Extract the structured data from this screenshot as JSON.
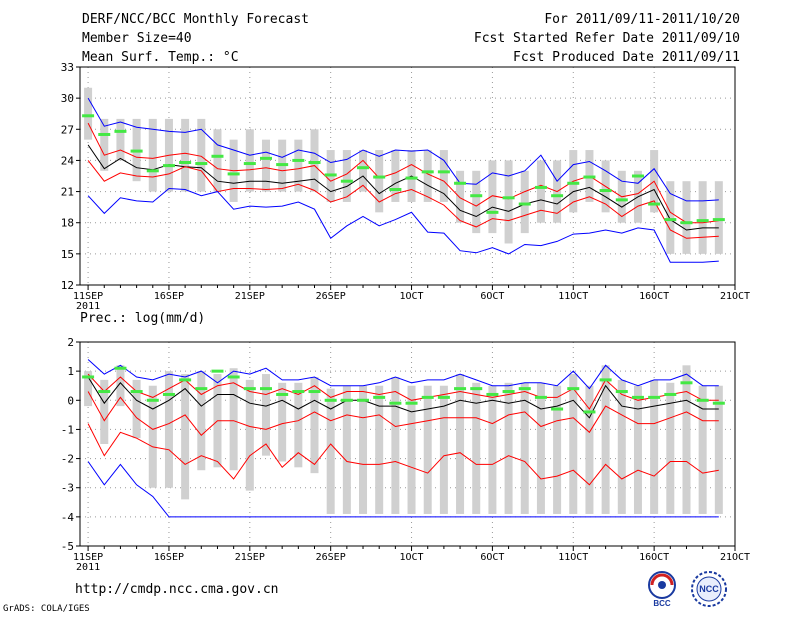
{
  "header": {
    "left": [
      "DERF/NCC/BCC Monthly Forecast",
      "Member Size=40",
      "Mean Surf. Temp.: °C"
    ],
    "right": [
      "For 2011/09/11-2011/10/20",
      "Fcst Started Refer Date 2011/09/10",
      "Fcst Produced Date 2011/09/11"
    ]
  },
  "footer": {
    "url": "http://cmdp.ncc.cma.gov.cn",
    "credit": "GrADS: COLA/IGES",
    "logos": [
      {
        "name": "bcc-logo",
        "label": "BCC"
      },
      {
        "name": "ncc-logo",
        "label": "NCC"
      }
    ]
  },
  "colors": {
    "max": "#0000ff",
    "spread": "#ff0000",
    "mean": "#000000",
    "box": "#d0d0d0",
    "marker": "#44e844",
    "grid": "#999999"
  },
  "chart_data": [
    {
      "type": "line",
      "title": "Mean Surf. Temp.: °C",
      "x": [
        1,
        2,
        3,
        4,
        5,
        6,
        7,
        8,
        9,
        10,
        11,
        12,
        13,
        14,
        15,
        16,
        17,
        18,
        19,
        20,
        21,
        22,
        23,
        24,
        25,
        26,
        27,
        28,
        29,
        30,
        31,
        32,
        33,
        34,
        35,
        36,
        37,
        38,
        39,
        40
      ],
      "x_tick_labels": [
        "11SEP\n2011",
        "16SEP",
        "21SEP",
        "26SEP",
        "1OCT",
        "6OCT",
        "11OCT",
        "16OCT",
        "21OCT"
      ],
      "x_tick_positions": [
        1,
        6,
        11,
        16,
        21,
        26,
        31,
        36,
        41
      ],
      "xlim": [
        0.5,
        41
      ],
      "ylim": [
        12,
        33
      ],
      "y_ticks": [
        12,
        15,
        18,
        21,
        24,
        27,
        30,
        33
      ],
      "series": [
        {
          "name": "max",
          "values": [
            30,
            27.3,
            27.7,
            27.2,
            27,
            26.8,
            26.7,
            27,
            25.5,
            25,
            24.5,
            24.8,
            24.3,
            25,
            24.7,
            23.8,
            24.1,
            25,
            24.4,
            25,
            24.9,
            25,
            24,
            21.8,
            21.7,
            22.8,
            22.5,
            23,
            24.5,
            22,
            23.6,
            23.9,
            23,
            22,
            21.8,
            23.2,
            20.8,
            20.1,
            20.1,
            20.2
          ]
        },
        {
          "name": "upper",
          "values": [
            27.6,
            24.5,
            25,
            24.3,
            24.2,
            24.5,
            24.7,
            24.4,
            23.2,
            23,
            23.1,
            23.3,
            23,
            23.2,
            23.5,
            22,
            22.7,
            24,
            22.3,
            22.8,
            23.6,
            22.7,
            22,
            20.4,
            19.6,
            20.6,
            20.3,
            21,
            21.6,
            21,
            22,
            22.5,
            21.5,
            20.5,
            20.8,
            22,
            19,
            18,
            18,
            18.2
          ]
        },
        {
          "name": "mean",
          "values": [
            25.5,
            23.2,
            24.2,
            23.3,
            23.1,
            23.6,
            23.4,
            23.3,
            22,
            21.8,
            22,
            22,
            21.8,
            22,
            22.2,
            21,
            21.5,
            22.5,
            20.8,
            21.8,
            22.5,
            21.6,
            20.8,
            19.2,
            18.6,
            19.5,
            19.1,
            19.8,
            20.2,
            19.8,
            21,
            21.4,
            20.5,
            19.5,
            20.5,
            21.2,
            18.3,
            17.3,
            17.5,
            17.5
          ]
        },
        {
          "name": "lower",
          "values": [
            24,
            22,
            22.8,
            22.5,
            22.4,
            22.7,
            23.4,
            23,
            21,
            21.3,
            21.3,
            21.2,
            21.3,
            21.7,
            21.1,
            20,
            20.5,
            21.6,
            20,
            20.8,
            21.2,
            20.5,
            19.7,
            18.2,
            17.6,
            18.4,
            18.2,
            18.7,
            19.2,
            18.9,
            20,
            20.5,
            19.8,
            18.6,
            19.6,
            20.1,
            17.3,
            16.5,
            16.6,
            16.7
          ]
        },
        {
          "name": "min",
          "values": [
            20.6,
            18.9,
            20.4,
            20.1,
            20,
            21.3,
            21.2,
            20.6,
            21,
            19.3,
            19.6,
            19.5,
            19.6,
            20,
            19.3,
            16.5,
            17.7,
            18.6,
            17.7,
            18.3,
            19,
            17.1,
            17,
            15.3,
            15.1,
            15.6,
            15,
            15.9,
            15.8,
            16.2,
            16.9,
            17,
            17.3,
            17,
            17.5,
            17.3,
            14.2,
            14.2,
            14.2,
            14.3
          ]
        }
      ],
      "box_low": [
        26,
        23,
        24,
        22,
        21,
        21,
        21,
        21,
        21,
        20,
        21,
        21,
        21,
        21,
        21,
        20,
        20,
        21,
        19,
        20,
        20,
        20,
        20,
        18,
        17,
        17,
        16,
        17,
        18,
        18,
        19,
        20,
        19,
        18,
        18,
        19,
        15,
        15,
        15,
        15
      ],
      "box_high": [
        31,
        28,
        28,
        28,
        28,
        28,
        28,
        28,
        27,
        26,
        27,
        26,
        26,
        26,
        27,
        25,
        25,
        25,
        25,
        25,
        25,
        25,
        25,
        23,
        23,
        24,
        24,
        23,
        24,
        24,
        25,
        25,
        24,
        23,
        23,
        25,
        22,
        22,
        22,
        22
      ],
      "marker": [
        28.3,
        26.5,
        26.8,
        24.9,
        23,
        23.5,
        23.8,
        23.7,
        24.4,
        22.7,
        23.7,
        24.2,
        23.6,
        24,
        23.8,
        22.6,
        22,
        23.3,
        22.4,
        21.2,
        22.3,
        22.9,
        22.9,
        21.8,
        20.6,
        19,
        20.4,
        19.8,
        21.4,
        20.6,
        21.8,
        22.4,
        21.1,
        20.2,
        22.5,
        19.8,
        18.3,
        18,
        18.2,
        18.3
      ]
    },
    {
      "type": "line",
      "title": "Prec.: log(mm/d)",
      "x": [
        1,
        2,
        3,
        4,
        5,
        6,
        7,
        8,
        9,
        10,
        11,
        12,
        13,
        14,
        15,
        16,
        17,
        18,
        19,
        20,
        21,
        22,
        23,
        24,
        25,
        26,
        27,
        28,
        29,
        30,
        31,
        32,
        33,
        34,
        35,
        36,
        37,
        38,
        39,
        40
      ],
      "x_tick_labels": [
        "11SEP\n2011",
        "16SEP",
        "21SEP",
        "26SEP",
        "1OCT",
        "6OCT",
        "11OCT",
        "16OCT",
        "21OCT"
      ],
      "x_tick_positions": [
        1,
        6,
        11,
        16,
        21,
        26,
        31,
        36,
        41
      ],
      "xlim": [
        0.5,
        41
      ],
      "ylim": [
        -5,
        2
      ],
      "y_ticks": [
        -5,
        -4,
        -3,
        -2,
        -1,
        0,
        1,
        2
      ],
      "series": [
        {
          "name": "max",
          "values": [
            1.4,
            0.9,
            1.2,
            0.8,
            0.7,
            0.9,
            0.8,
            1,
            0.6,
            1,
            0.9,
            1.1,
            0.7,
            0.7,
            0.8,
            0.5,
            0.5,
            0.5,
            0.6,
            0.8,
            0.6,
            0.7,
            0.7,
            0.9,
            0.7,
            0.5,
            0.5,
            0.6,
            0.6,
            0.5,
            1,
            0.4,
            1.2,
            0.7,
            0.5,
            0.7,
            0.7,
            0.9,
            0.5,
            0.5
          ]
        },
        {
          "name": "upper",
          "values": [
            0.9,
            0.3,
            0.8,
            0.3,
            0.1,
            0.4,
            0.7,
            0.2,
            0.5,
            0.6,
            0.3,
            0.2,
            0.4,
            0.2,
            0.5,
            0.1,
            0.3,
            0.3,
            0.2,
            0.3,
            0,
            0.1,
            0.2,
            0.3,
            0.2,
            0.1,
            0.2,
            0.3,
            0.1,
            0.1,
            0.4,
            -0.3,
            0.7,
            0.2,
            0,
            0.1,
            0.2,
            0.3,
            0,
            0
          ]
        },
        {
          "name": "mean",
          "values": [
            0.8,
            -0.1,
            0.6,
            0,
            -0.3,
            0,
            0.4,
            -0.2,
            0.2,
            0.2,
            -0.1,
            -0.2,
            0,
            -0.3,
            0,
            -0.3,
            0,
            0,
            -0.2,
            -0.2,
            -0.4,
            -0.3,
            -0.2,
            0,
            -0.1,
            0,
            -0.1,
            0,
            -0.3,
            -0.2,
            0,
            -0.6,
            0.5,
            -0.2,
            -0.3,
            -0.2,
            -0.1,
            0,
            -0.3,
            -0.3
          ]
        },
        {
          "name": "lower",
          "values": [
            0.3,
            -0.7,
            0.1,
            -0.6,
            -1,
            -0.8,
            -0.5,
            -1.2,
            -0.7,
            -0.7,
            -0.9,
            -1,
            -0.8,
            -0.7,
            -0.4,
            -0.7,
            -0.5,
            -0.6,
            -0.5,
            -0.9,
            -0.8,
            -0.7,
            -0.6,
            -0.6,
            -0.6,
            -0.8,
            -0.5,
            -0.4,
            -0.9,
            -0.7,
            -0.6,
            -1.1,
            -0.2,
            -0.5,
            -0.8,
            -0.8,
            -0.6,
            -0.4,
            -0.7,
            -0.7
          ]
        },
        {
          "name": "min",
          "values": [
            -2.1,
            -2.9,
            -2.2,
            -2.9,
            -3.3,
            -4,
            -4,
            -4,
            -4,
            -4,
            -4,
            -4,
            -4,
            -4,
            -4,
            -4,
            -4,
            -4,
            -4,
            -4,
            -4,
            -4,
            -4,
            -4,
            -4,
            -4,
            -4,
            -4,
            -4,
            -4,
            -4,
            -4,
            -4,
            -4,
            -4,
            -4,
            -4,
            -4,
            -4,
            -4
          ]
        },
        {
          "name": "lowest",
          "values": [
            -0.8,
            -1.9,
            -1.1,
            -1.3,
            -1.6,
            -1.7,
            -2.2,
            -1.9,
            -2.1,
            -2.7,
            -1.9,
            -1.5,
            -2.3,
            -1.8,
            -2.2,
            -1.5,
            -2.1,
            -2.2,
            -2.2,
            -2.1,
            -2.3,
            -2.5,
            -1.9,
            -1.8,
            -2.2,
            -2.2,
            -1.9,
            -2.1,
            -2.7,
            -2.6,
            -2.4,
            -2.9,
            -2.2,
            -2.7,
            -2.4,
            -2.6,
            -2.1,
            -2.1,
            -2.5,
            -2.4
          ]
        }
      ],
      "box_low": [
        -0.2,
        -1.5,
        -0.2,
        -1.3,
        -3,
        -3,
        -3.4,
        -2.4,
        -2.3,
        -2.4,
        -3.1,
        -1.9,
        -2.1,
        -2.3,
        -2.5,
        -3.9,
        -3.9,
        -3.9,
        -3.9,
        -3.9,
        -3.9,
        -3.9,
        -3.9,
        -3.9,
        -3.9,
        -3.9,
        -3.9,
        -3.9,
        -3.9,
        -3.9,
        -3.9,
        -3.9,
        -3.9,
        -3.9,
        -3.9,
        -3.9,
        -3.9,
        -3.9,
        -3.9,
        -3.9
      ],
      "box_high": [
        1,
        0.7,
        1.2,
        0.7,
        0.5,
        1,
        0.9,
        1,
        0.9,
        1.1,
        0.7,
        0.9,
        0.6,
        0.6,
        0.8,
        0.4,
        0.5,
        0.5,
        0.5,
        0.8,
        0.5,
        0.5,
        0.5,
        0.9,
        0.6,
        0.5,
        0.6,
        0.6,
        0.6,
        0.5,
        0.9,
        0.5,
        1.2,
        0.7,
        0.5,
        0.7,
        0.6,
        1.2,
        0.5,
        0.5
      ],
      "marker": [
        0.8,
        0.3,
        1.1,
        0.3,
        0,
        0.2,
        0.7,
        0.4,
        1,
        0.8,
        0.4,
        0.4,
        0.2,
        0.3,
        0.3,
        0,
        0,
        0,
        0.1,
        -0.1,
        -0.1,
        0.1,
        0.1,
        0.4,
        0.4,
        0.2,
        0.3,
        0.4,
        0.1,
        -0.3,
        0.4,
        -0.4,
        0.7,
        0.3,
        0.1,
        0.1,
        0.2,
        0.6,
        0,
        -0.1
      ]
    }
  ]
}
